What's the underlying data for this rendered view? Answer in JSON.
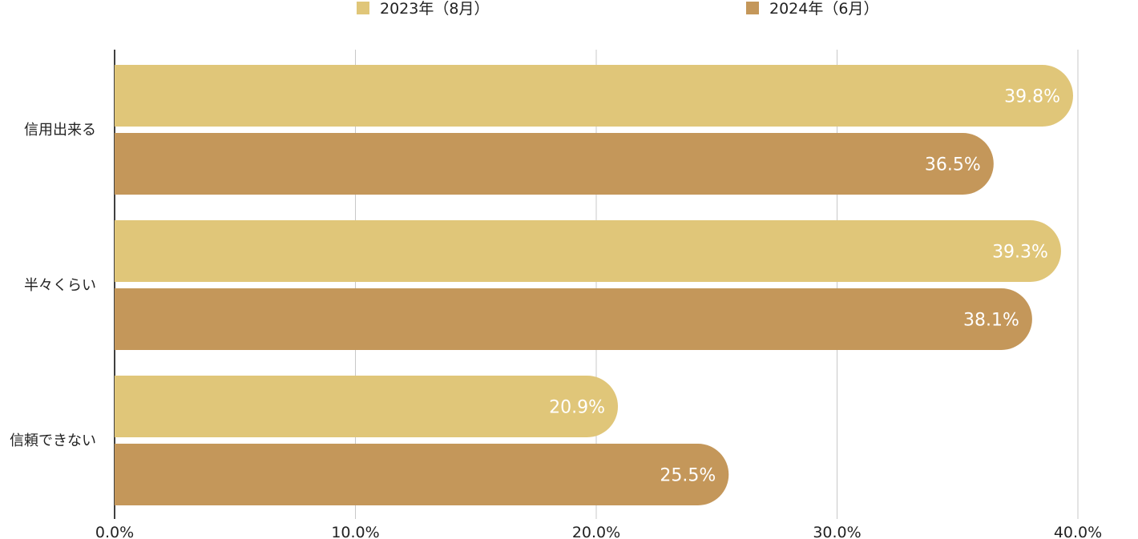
{
  "chart_data": {
    "type": "bar",
    "orientation": "horizontal",
    "categories": [
      "信用出来る",
      "半々くらい",
      "信頼できない"
    ],
    "series": [
      {
        "name": "2023年（8月）",
        "color": "#E0C679",
        "values": [
          39.8,
          39.3,
          20.9
        ]
      },
      {
        "name": "2024年（6月）",
        "color": "#C4975A",
        "values": [
          36.5,
          38.1,
          25.5
        ]
      }
    ],
    "data_labels": [
      [
        "39.8%",
        "39.3%",
        "20.9%"
      ],
      [
        "36.5%",
        "38.1%",
        "25.5%"
      ]
    ],
    "xlim": [
      0,
      40
    ],
    "xticks": [
      "0.0%",
      "10.0%",
      "20.0%",
      "30.0%",
      "40.0%"
    ],
    "grid": "vertical",
    "legend_position": "top"
  }
}
